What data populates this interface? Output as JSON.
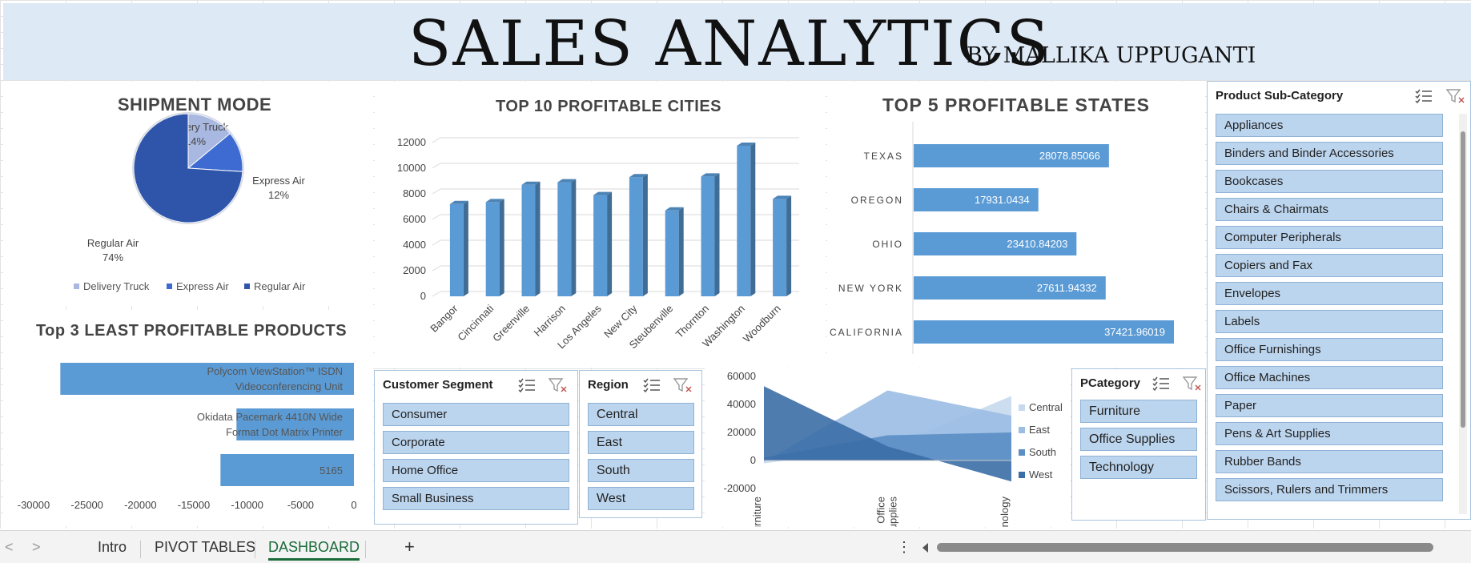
{
  "banner": {
    "title": "SALES ANALYTICS",
    "subtitle": "BY MALLIKA UPPUGANTI"
  },
  "shipment": {
    "title": "SHIPMENT MODE",
    "chart_data": {
      "type": "pie",
      "title": "SHIPMENT MODE",
      "categories": [
        "Delivery Truck",
        "Express Air",
        "Regular Air"
      ],
      "values": [
        14,
        12,
        74
      ],
      "labels": [
        "14%",
        "12%",
        "74%"
      ],
      "colors": [
        "#a9b8e0",
        "#3d6bd1",
        "#2f55aa"
      ],
      "legend": "bottom"
    }
  },
  "cities": {
    "title": "TOP 10 PROFITABLE CITIES",
    "chart_data": {
      "type": "bar",
      "title": "TOP 10 PROFITABLE CITIES",
      "categories": [
        "Bangor",
        "Cincinnati",
        "Greenville",
        "Harrison",
        "Los Angeles",
        "New City",
        "Steubenville",
        "Thornton",
        "Washington",
        "Woodburn"
      ],
      "values": [
        7200,
        7350,
        8700,
        8900,
        7900,
        9300,
        6700,
        9350,
        11750,
        7600
      ],
      "ylim": [
        0,
        12000
      ],
      "yticks": [
        "12000",
        "10000",
        "8000",
        "6000",
        "4000",
        "2000",
        "0"
      ],
      "color": "#5b9bd5"
    }
  },
  "states": {
    "title": "TOP 5 PROFITABLE STATES",
    "chart_data": {
      "type": "bar",
      "orientation": "horizontal",
      "title": "TOP 5 PROFITABLE STATES",
      "categories": [
        "TEXAS",
        "OREGON",
        "OHIO",
        "NEW YORK",
        "CALIFORNIA"
      ],
      "values": [
        28078.85066,
        17931.0434,
        23410.84203,
        27611.94332,
        37421.96019
      ],
      "labels": [
        "28078.85066",
        "17931.0434",
        "23410.84203",
        "27611.94332",
        "37421.96019"
      ],
      "color": "#5b9bd5"
    }
  },
  "least": {
    "title": "Top 3 LEAST PROFITABLE PRODUCTS",
    "chart_data": {
      "type": "bar",
      "orientation": "horizontal",
      "title": "Top 3 LEAST PROFITABLE PRODUCTS",
      "categories": [
        "Polycom ViewStation™ ISDN Videoconferencing Unit",
        "Okidata Pacemark 4410N Wide Format Dot Matrix Printer",
        ""
      ],
      "label_lines": [
        [
          "Polycom ViewStation™ ISDN",
          "Videoconferencing Unit"
        ],
        [
          "Okidata Pacemark 4410N Wide",
          "Format Dot Matrix Printer"
        ],
        [
          "5165"
        ]
      ],
      "values": [
        -27500,
        -11000,
        -12500
      ],
      "xlim": [
        -30000,
        0
      ],
      "xticks": [
        "-30000",
        "-25000",
        "-20000",
        "-15000",
        "-10000",
        "-5000",
        "0"
      ],
      "color": "#5b9bd5"
    }
  },
  "area": {
    "chart_data": {
      "type": "area",
      "categories": [
        "Furniture",
        "Office Supplies",
        "Technology"
      ],
      "series": [
        {
          "name": "Central",
          "values": [
            -2000,
            9000,
            46000
          ]
        },
        {
          "name": "East",
          "values": [
            -1000,
            50000,
            32000
          ]
        },
        {
          "name": "South",
          "values": [
            2000,
            18000,
            20000
          ]
        },
        {
          "name": "West",
          "values": [
            53000,
            10000,
            -15000
          ]
        }
      ],
      "ylim": [
        -20000,
        60000
      ],
      "yticks": [
        "60000",
        "40000",
        "20000",
        "0",
        "-20000"
      ],
      "xtick_lines": [
        [
          "Furniture"
        ],
        [
          "Office",
          "Supplies"
        ],
        [
          "Technology"
        ]
      ],
      "colors": [
        "#c6d9ee",
        "#9bbde3",
        "#5b8ec4",
        "#3b6ea6"
      ],
      "legend": "right"
    }
  },
  "slicers": {
    "customer": {
      "title": "Customer Segment",
      "items": [
        "Consumer",
        "Corporate",
        "Home Office",
        "Small Business"
      ]
    },
    "region": {
      "title": "Region",
      "items": [
        "Central",
        "East",
        "South",
        "West"
      ]
    },
    "pcategory": {
      "title": "PCategory",
      "items": [
        "Furniture",
        "Office Supplies",
        "Technology"
      ]
    },
    "subcategory": {
      "title": "Product Sub-Category",
      "items": [
        "Appliances",
        "Binders and Binder Accessories",
        "Bookcases",
        "Chairs & Chairmats",
        "Computer Peripherals",
        "Copiers and Fax",
        "Envelopes",
        "Labels",
        "Office Furnishings",
        "Office Machines",
        "Paper",
        "Pens & Art Supplies",
        "Rubber Bands",
        "Scissors, Rulers and Trimmers"
      ]
    }
  },
  "tabs": {
    "items": [
      "Intro",
      "PIVOT TABLES",
      "DASHBOARD"
    ],
    "active": "DASHBOARD",
    "add": "+",
    "more": "⋮",
    "prev": "<",
    "next": ">"
  }
}
